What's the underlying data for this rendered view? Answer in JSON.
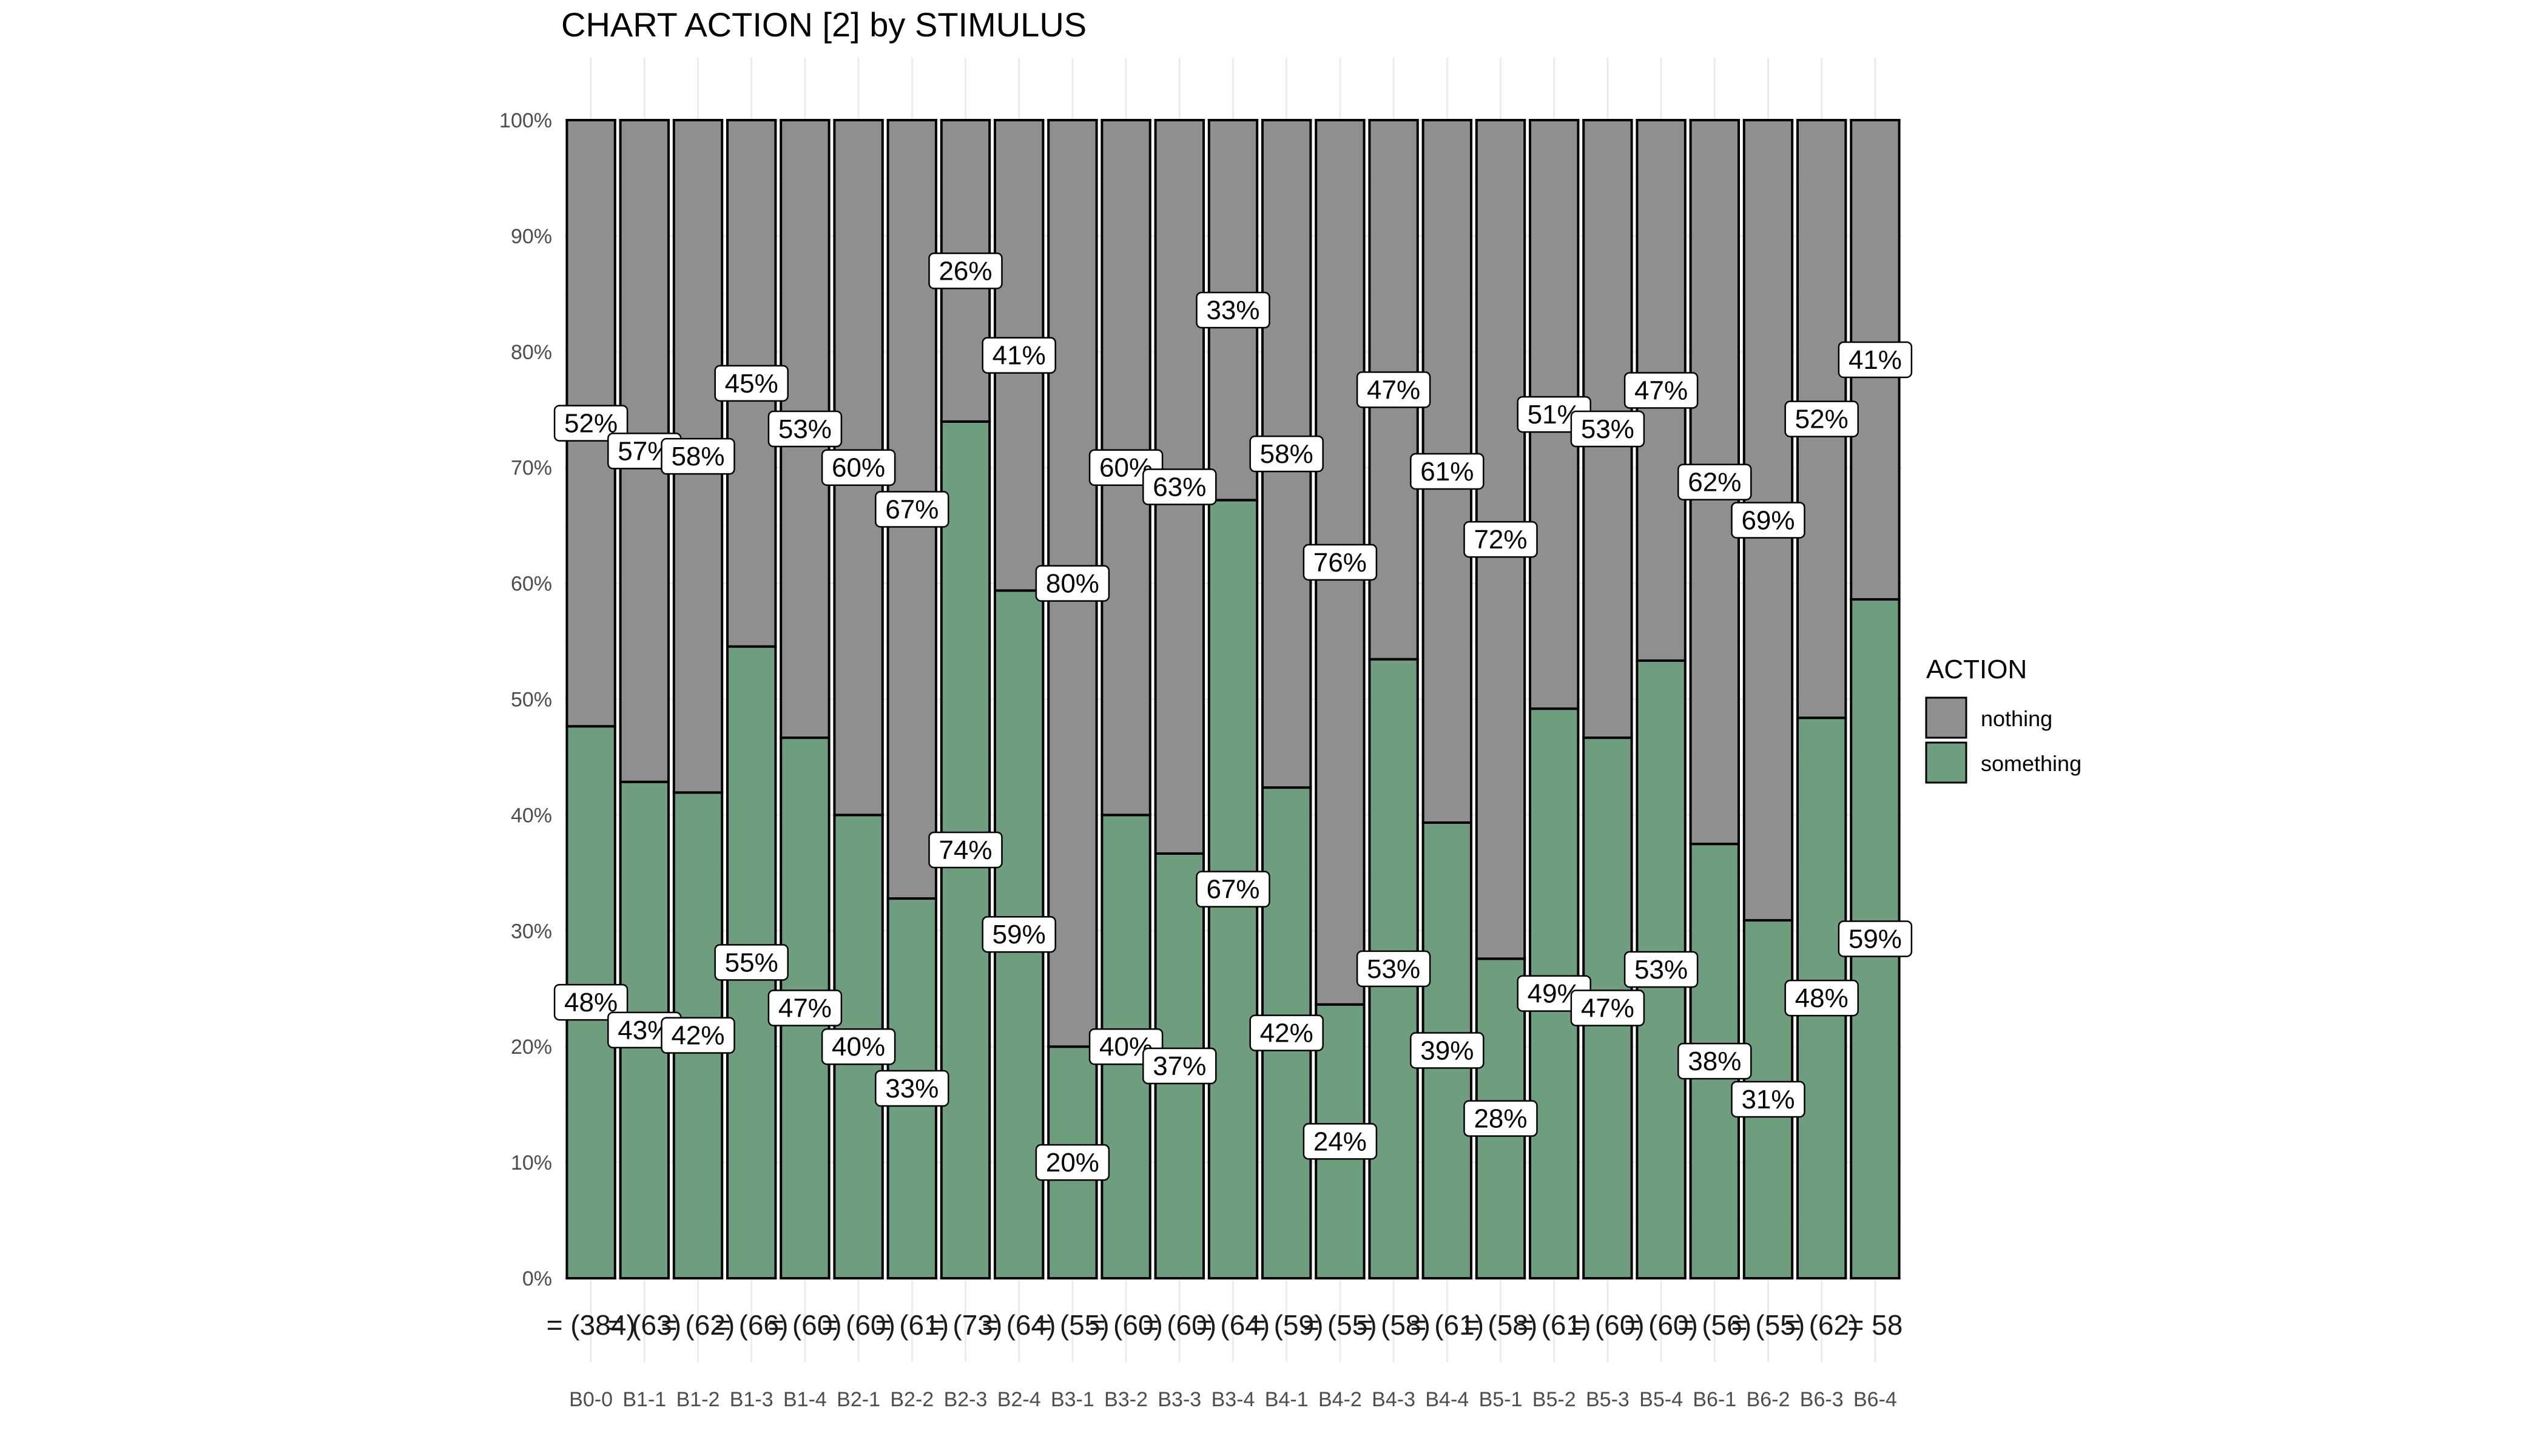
{
  "chart_data": {
    "type": "bar",
    "stacked": true,
    "percent": true,
    "title": "CHART ACTION [2] by STIMULUS",
    "xlabel": "",
    "ylabel": "",
    "ylim": [
      0,
      1
    ],
    "y_ticks": [
      "0%",
      "10%",
      "20%",
      "30%",
      "40%",
      "50%",
      "60%",
      "70%",
      "80%",
      "90%",
      "100%"
    ],
    "grid": true,
    "legend": {
      "title": "ACTION",
      "position": "right"
    },
    "categories": [
      "B0-0",
      "B1-1",
      "B1-2",
      "B1-3",
      "B1-4",
      "B2-1",
      "B2-2",
      "B2-3",
      "B2-4",
      "B3-1",
      "B3-2",
      "B3-3",
      "B3-4",
      "B4-1",
      "B4-2",
      "B4-3",
      "B4-4",
      "B5-1",
      "B5-2",
      "B5-3",
      "B5-4",
      "B6-1",
      "B6-2",
      "B6-3",
      "B6-4"
    ],
    "n_labels": [
      "(384)",
      "(63)",
      "(62)",
      "(66)",
      "(60)",
      "(60)",
      "(61)",
      "(73)",
      "(64)",
      "(55)",
      "(60)",
      "(60)",
      "(64)",
      "(59)",
      "(55)",
      "(58)",
      "(61)",
      "(58)",
      "(61)",
      "(60)",
      "(60)",
      "(56)",
      "(55)",
      "(62)",
      "58"
    ],
    "n_prefix": "=",
    "series": [
      {
        "name": "something",
        "color": "#6e9e7e",
        "values": [
          0.4766,
          0.4286,
          0.4194,
          0.5455,
          0.4667,
          0.4,
          0.3279,
          0.7397,
          0.5938,
          0.2,
          0.4,
          0.3667,
          0.6719,
          0.4237,
          0.2364,
          0.5345,
          0.3934,
          0.2759,
          0.4918,
          0.4667,
          0.5333,
          0.375,
          0.3091,
          0.4839,
          0.5862
        ],
        "labels": [
          "48%",
          "43%",
          "42%",
          "55%",
          "47%",
          "40%",
          "33%",
          "74%",
          "59%",
          "20%",
          "40%",
          "37%",
          "67%",
          "42%",
          "24%",
          "53%",
          "39%",
          "28%",
          "49%",
          "47%",
          "53%",
          "38%",
          "31%",
          "48%",
          "59%"
        ]
      },
      {
        "name": "nothing",
        "color": "#8f8f8f",
        "values": [
          0.5234,
          0.5714,
          0.5806,
          0.4545,
          0.5333,
          0.6,
          0.6721,
          0.2603,
          0.4062,
          0.8,
          0.6,
          0.6333,
          0.3281,
          0.5763,
          0.7636,
          0.4655,
          0.6066,
          0.7241,
          0.5082,
          0.5333,
          0.4667,
          0.625,
          0.6909,
          0.5161,
          0.4138
        ],
        "labels": [
          "52%",
          "57%",
          "58%",
          "45%",
          "53%",
          "60%",
          "67%",
          "26%",
          "41%",
          "80%",
          "60%",
          "63%",
          "33%",
          "58%",
          "76%",
          "47%",
          "61%",
          "72%",
          "51%",
          "53%",
          "47%",
          "62%",
          "69%",
          "52%",
          "41%"
        ]
      }
    ]
  }
}
